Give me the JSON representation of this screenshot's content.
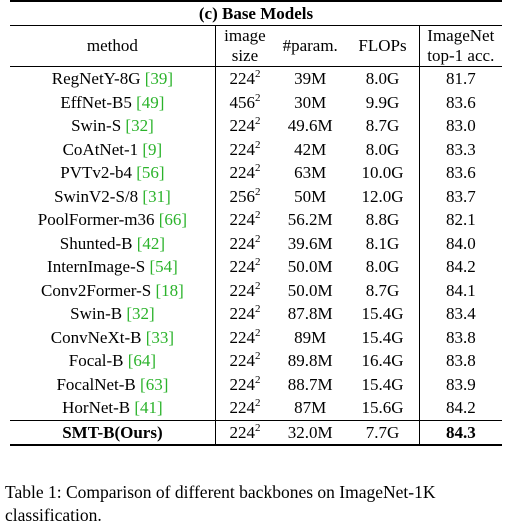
{
  "table": {
    "section_title": "(c) Base Models",
    "headers": {
      "method": "method",
      "image_size_line1": "image",
      "image_size_line2": "size",
      "params": "#param.",
      "flops": "FLOPs",
      "acc_line1": "ImageNet",
      "acc_line2": "top-1 acc."
    },
    "rows": [
      {
        "method": "RegNetY-8G",
        "ref": "[39]",
        "size_base": "224",
        "size_exp": "2",
        "params": "39M",
        "flops": "8.0G",
        "acc": "81.7"
      },
      {
        "method": "EffNet-B5",
        "ref": "[49]",
        "size_base": "456",
        "size_exp": "2",
        "params": "30M",
        "flops": "9.9G",
        "acc": "83.6"
      },
      {
        "method": "Swin-S",
        "ref": "[32]",
        "size_base": "224",
        "size_exp": "2",
        "params": "49.6M",
        "flops": "8.7G",
        "acc": "83.0"
      },
      {
        "method": "CoAtNet-1",
        "ref": "[9]",
        "size_base": "224",
        "size_exp": "2",
        "params": "42M",
        "flops": "8.0G",
        "acc": "83.3"
      },
      {
        "method": "PVTv2-b4",
        "ref": "[56]",
        "size_base": "224",
        "size_exp": "2",
        "params": "63M",
        "flops": "10.0G",
        "acc": "83.6"
      },
      {
        "method": "SwinV2-S/8",
        "ref": "[31]",
        "size_base": "256",
        "size_exp": "2",
        "params": "50M",
        "flops": "12.0G",
        "acc": "83.7"
      },
      {
        "method": "PoolFormer-m36",
        "ref": "[66]",
        "size_base": "224",
        "size_exp": "2",
        "params": "56.2M",
        "flops": "8.8G",
        "acc": "82.1"
      },
      {
        "method": "Shunted-B",
        "ref": "[42]",
        "size_base": "224",
        "size_exp": "2",
        "params": "39.6M",
        "flops": "8.1G",
        "acc": "84.0"
      },
      {
        "method": "InternImage-S",
        "ref": "[54]",
        "size_base": "224",
        "size_exp": "2",
        "params": "50.0M",
        "flops": "8.0G",
        "acc": "84.2"
      },
      {
        "method": "Conv2Former-S",
        "ref": "[18]",
        "size_base": "224",
        "size_exp": "2",
        "params": "50.0M",
        "flops": "8.7G",
        "acc": "84.1"
      },
      {
        "method": "Swin-B",
        "ref": "[32]",
        "size_base": "224",
        "size_exp": "2",
        "params": "87.8M",
        "flops": "15.4G",
        "acc": "83.4"
      },
      {
        "method": "ConvNeXt-B",
        "ref": "[33]",
        "size_base": "224",
        "size_exp": "2",
        "params": "89M",
        "flops": "15.4G",
        "acc": "83.8"
      },
      {
        "method": "Focal-B",
        "ref": "[64]",
        "size_base": "224",
        "size_exp": "2",
        "params": "89.8M",
        "flops": "16.4G",
        "acc": "83.8"
      },
      {
        "method": "FocalNet-B",
        "ref": "[63]",
        "size_base": "224",
        "size_exp": "2",
        "params": "88.7M",
        "flops": "15.4G",
        "acc": "83.9"
      },
      {
        "method": "HorNet-B",
        "ref": "[41]",
        "size_base": "224",
        "size_exp": "2",
        "params": "87M",
        "flops": "15.6G",
        "acc": "84.2"
      }
    ],
    "ours": {
      "method": "SMT-B(Ours)",
      "size_base": "224",
      "size_exp": "2",
      "params": "32.0M",
      "flops": "7.7G",
      "acc": "84.3"
    }
  },
  "caption": "Table 1: Comparison of different backbones on ImageNet-1K classification."
}
